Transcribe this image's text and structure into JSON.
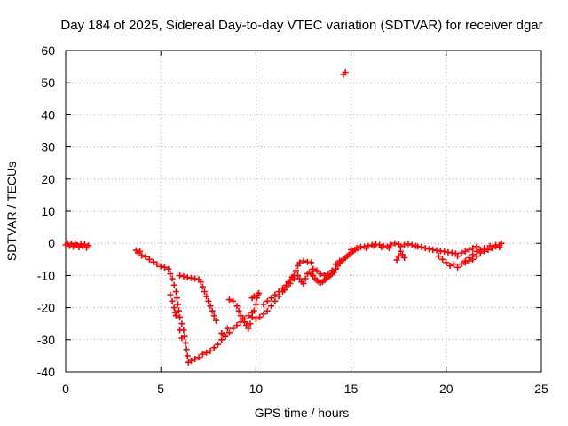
{
  "chart_data": {
    "type": "scatter",
    "title": "Day 184 of 2025, Sidereal Day-to-day VTEC variation (SDTVAR) for receiver dgar",
    "xlabel": "GPS time / hours",
    "ylabel": "SDTVAR / TECUs",
    "xlim": [
      0,
      25
    ],
    "ylim": [
      -40,
      60
    ],
    "xticks": [
      "0",
      "5",
      "10",
      "15",
      "20",
      "25"
    ],
    "yticks": [
      "-40",
      "-30",
      "-20",
      "-10",
      "0",
      "10",
      "20",
      "30",
      "40",
      "50",
      "60"
    ],
    "grid": true,
    "marker": "+",
    "color": "#ff0000",
    "series": [
      {
        "name": "SDTVAR",
        "points": [
          [
            0.0,
            -0.5
          ],
          [
            0.1,
            0.0
          ],
          [
            0.2,
            -0.8
          ],
          [
            0.3,
            -0.2
          ],
          [
            0.4,
            -1.0
          ],
          [
            0.5,
            0.0
          ],
          [
            0.6,
            -0.6
          ],
          [
            0.7,
            -1.2
          ],
          [
            0.8,
            -0.2
          ],
          [
            0.9,
            -0.9
          ],
          [
            1.0,
            -0.3
          ],
          [
            1.1,
            -1.4
          ],
          [
            1.2,
            -0.7
          ],
          [
            3.7,
            -2.2
          ],
          [
            3.8,
            -3.0
          ],
          [
            3.9,
            -2.5
          ],
          [
            4.0,
            -3.8
          ],
          [
            4.2,
            -4.2
          ],
          [
            4.4,
            -5.0
          ],
          [
            4.6,
            -5.8
          ],
          [
            4.8,
            -6.5
          ],
          [
            5.0,
            -7.2
          ],
          [
            5.2,
            -7.5
          ],
          [
            5.4,
            -8.0
          ],
          [
            5.5,
            -9.5
          ],
          [
            5.6,
            -11.0
          ],
          [
            5.7,
            -13.0
          ],
          [
            5.8,
            -15.0
          ],
          [
            5.85,
            -17.0
          ],
          [
            5.9,
            -19.0
          ],
          [
            5.95,
            -21.0
          ],
          [
            6.0,
            -23.0
          ],
          [
            6.1,
            -25.0
          ],
          [
            6.2,
            -27.0
          ],
          [
            6.25,
            -29.0
          ],
          [
            6.3,
            -31.0
          ],
          [
            6.35,
            -33.0
          ],
          [
            6.4,
            -35.0
          ],
          [
            6.45,
            -37.0
          ],
          [
            6.6,
            -36.5
          ],
          [
            6.8,
            -36.0
          ],
          [
            7.0,
            -35.5
          ],
          [
            7.2,
            -34.5
          ],
          [
            7.4,
            -34.0
          ],
          [
            7.6,
            -33.5
          ],
          [
            7.8,
            -32.5
          ],
          [
            8.0,
            -31.5
          ],
          [
            8.2,
            -30.0
          ],
          [
            8.4,
            -29.0
          ],
          [
            8.6,
            -27.8
          ],
          [
            8.8,
            -26.5
          ],
          [
            9.0,
            -25.5
          ],
          [
            9.2,
            -24.5
          ],
          [
            9.4,
            -23.5
          ],
          [
            9.6,
            -22.5
          ],
          [
            9.8,
            -21.5
          ],
          [
            5.5,
            -16.0
          ],
          [
            5.6,
            -18.0
          ],
          [
            5.7,
            -20.0
          ],
          [
            5.75,
            -21.5
          ],
          [
            5.8,
            -22.5
          ],
          [
            6.0,
            -27.0
          ],
          [
            6.1,
            -29.5
          ],
          [
            6.0,
            -10.0
          ],
          [
            6.2,
            -10.3
          ],
          [
            6.4,
            -10.6
          ],
          [
            6.6,
            -10.8
          ],
          [
            6.8,
            -11.0
          ],
          [
            7.0,
            -11.2
          ],
          [
            7.1,
            -12.0
          ],
          [
            7.2,
            -13.5
          ],
          [
            7.3,
            -15.0
          ],
          [
            7.4,
            -16.5
          ],
          [
            7.5,
            -18.0
          ],
          [
            7.6,
            -19.5
          ],
          [
            7.7,
            -21.0
          ],
          [
            7.8,
            -22.5
          ],
          [
            7.9,
            -24.0
          ],
          [
            8.2,
            -28.0
          ],
          [
            8.3,
            -28.5
          ],
          [
            8.5,
            -26.5
          ],
          [
            8.6,
            -17.5
          ],
          [
            8.8,
            -18.0
          ],
          [
            9.0,
            -19.5
          ],
          [
            9.1,
            -21.0
          ],
          [
            9.2,
            -22.5
          ],
          [
            9.3,
            -23.5
          ],
          [
            9.4,
            -24.5
          ],
          [
            9.5,
            -25.5
          ],
          [
            9.6,
            -26.5
          ],
          [
            9.7,
            -25.0
          ],
          [
            9.8,
            -23.0
          ],
          [
            9.9,
            -21.0
          ],
          [
            10.0,
            -19.0
          ],
          [
            10.05,
            -17.0
          ],
          [
            10.1,
            -16.0
          ],
          [
            10.15,
            -15.5
          ],
          [
            9.8,
            -17.0
          ],
          [
            9.9,
            -16.5
          ],
          [
            10.0,
            -23.5
          ],
          [
            10.2,
            -23.0
          ],
          [
            10.4,
            -22.0
          ],
          [
            10.6,
            -21.0
          ],
          [
            10.8,
            -19.5
          ],
          [
            11.0,
            -18.0
          ],
          [
            11.2,
            -16.5
          ],
          [
            11.4,
            -15.0
          ],
          [
            11.6,
            -13.5
          ],
          [
            11.8,
            -12.5
          ],
          [
            12.0,
            -11.0
          ],
          [
            10.4,
            -19.0
          ],
          [
            10.6,
            -18.0
          ],
          [
            10.8,
            -17.0
          ],
          [
            11.0,
            -16.0
          ],
          [
            11.2,
            -15.0
          ],
          [
            11.4,
            -14.0
          ],
          [
            11.6,
            -13.0
          ],
          [
            11.8,
            -11.5
          ],
          [
            12.0,
            -10.0
          ],
          [
            12.1,
            -8.5
          ],
          [
            12.2,
            -7.0
          ],
          [
            12.3,
            -6.0
          ],
          [
            12.5,
            -5.5
          ],
          [
            12.7,
            -5.8
          ],
          [
            12.9,
            -6.0
          ],
          [
            11.5,
            -14.5
          ],
          [
            11.7,
            -12.0
          ],
          [
            11.9,
            -10.5
          ],
          [
            12.2,
            -10.0
          ],
          [
            12.3,
            -11.0
          ],
          [
            12.4,
            -12.0
          ],
          [
            12.5,
            -12.5
          ],
          [
            12.6,
            -11.0
          ],
          [
            12.7,
            -9.5
          ],
          [
            12.8,
            -9.0
          ],
          [
            12.9,
            -9.5
          ],
          [
            13.0,
            -10.0
          ],
          [
            13.1,
            -11.0
          ],
          [
            13.2,
            -11.5
          ],
          [
            13.3,
            -12.0
          ],
          [
            13.4,
            -12.2
          ],
          [
            13.5,
            -12.0
          ],
          [
            13.6,
            -11.5
          ],
          [
            13.7,
            -11.0
          ],
          [
            13.8,
            -10.5
          ],
          [
            13.9,
            -10.0
          ],
          [
            14.0,
            -9.5
          ],
          [
            14.1,
            -9.0
          ],
          [
            14.2,
            -8.0
          ],
          [
            14.3,
            -7.0
          ],
          [
            14.4,
            -6.0
          ],
          [
            14.5,
            -5.5
          ],
          [
            14.6,
            -5.0
          ],
          [
            14.7,
            -4.5
          ],
          [
            14.8,
            -4.0
          ],
          [
            13.0,
            -8.0
          ],
          [
            13.2,
            -8.5
          ],
          [
            13.4,
            -9.5
          ],
          [
            13.6,
            -10.0
          ],
          [
            13.8,
            -9.5
          ],
          [
            14.0,
            -8.5
          ],
          [
            14.2,
            -6.5
          ],
          [
            14.4,
            -5.5
          ],
          [
            14.6,
            52.5
          ],
          [
            14.7,
            53.2
          ],
          [
            14.9,
            -3.5
          ],
          [
            15.0,
            -3.0
          ],
          [
            15.1,
            -2.5
          ],
          [
            15.2,
            -2.0
          ],
          [
            15.3,
            -1.5
          ],
          [
            15.5,
            -1.2
          ],
          [
            15.7,
            -1.0
          ],
          [
            15.9,
            -0.8
          ],
          [
            16.1,
            -0.5
          ],
          [
            16.3,
            -0.3
          ],
          [
            16.5,
            -0.5
          ],
          [
            16.7,
            -0.8
          ],
          [
            16.9,
            -1.0
          ],
          [
            17.1,
            -0.5
          ],
          [
            17.3,
            0.0
          ],
          [
            17.5,
            -0.3
          ],
          [
            17.6,
            -1.0
          ],
          [
            17.8,
            -0.5
          ],
          [
            18.0,
            -0.2
          ],
          [
            18.2,
            -0.5
          ],
          [
            18.4,
            -0.8
          ],
          [
            15.0,
            -2.0
          ],
          [
            15.4,
            -1.5
          ],
          [
            15.8,
            -1.5
          ],
          [
            16.2,
            -0.8
          ],
          [
            16.6,
            -1.2
          ],
          [
            17.0,
            -1.5
          ],
          [
            17.6,
            -2.5
          ],
          [
            17.7,
            -3.5
          ],
          [
            17.8,
            -4.5
          ],
          [
            17.5,
            -4.0
          ],
          [
            17.4,
            -5.2
          ],
          [
            18.5,
            -1.0
          ],
          [
            18.7,
            -1.2
          ],
          [
            18.9,
            -1.5
          ],
          [
            19.1,
            -1.8
          ],
          [
            19.3,
            -2.0
          ],
          [
            19.5,
            -2.2
          ],
          [
            19.7,
            -2.4
          ],
          [
            19.9,
            -2.6
          ],
          [
            20.1,
            -2.8
          ],
          [
            20.3,
            -3.0
          ],
          [
            20.5,
            -3.2
          ],
          [
            19.6,
            -4.0
          ],
          [
            19.8,
            -5.0
          ],
          [
            20.0,
            -6.0
          ],
          [
            20.2,
            -7.0
          ],
          [
            20.4,
            -6.5
          ],
          [
            20.6,
            -7.5
          ],
          [
            20.8,
            -6.5
          ],
          [
            21.0,
            -5.5
          ],
          [
            21.2,
            -4.5
          ],
          [
            21.4,
            -3.5
          ],
          [
            21.6,
            -2.5
          ],
          [
            21.8,
            -2.0
          ],
          [
            20.6,
            -4.0
          ],
          [
            20.8,
            -3.0
          ],
          [
            21.0,
            -2.5
          ],
          [
            21.2,
            -2.0
          ],
          [
            21.4,
            -1.5
          ],
          [
            21.6,
            -1.0
          ],
          [
            21.0,
            -6.0
          ],
          [
            21.2,
            -5.5
          ],
          [
            21.4,
            -5.0
          ],
          [
            21.6,
            -4.0
          ],
          [
            21.8,
            -3.0
          ],
          [
            22.0,
            -2.5
          ],
          [
            22.2,
            -2.0
          ],
          [
            22.4,
            -1.5
          ],
          [
            22.6,
            -1.0
          ],
          [
            22.8,
            -0.5
          ],
          [
            22.9,
            0.0
          ],
          [
            22.0,
            -1.5
          ],
          [
            22.3,
            -0.8
          ],
          [
            22.6,
            -0.5
          ],
          [
            22.8,
            -1.2
          ]
        ]
      }
    ]
  }
}
